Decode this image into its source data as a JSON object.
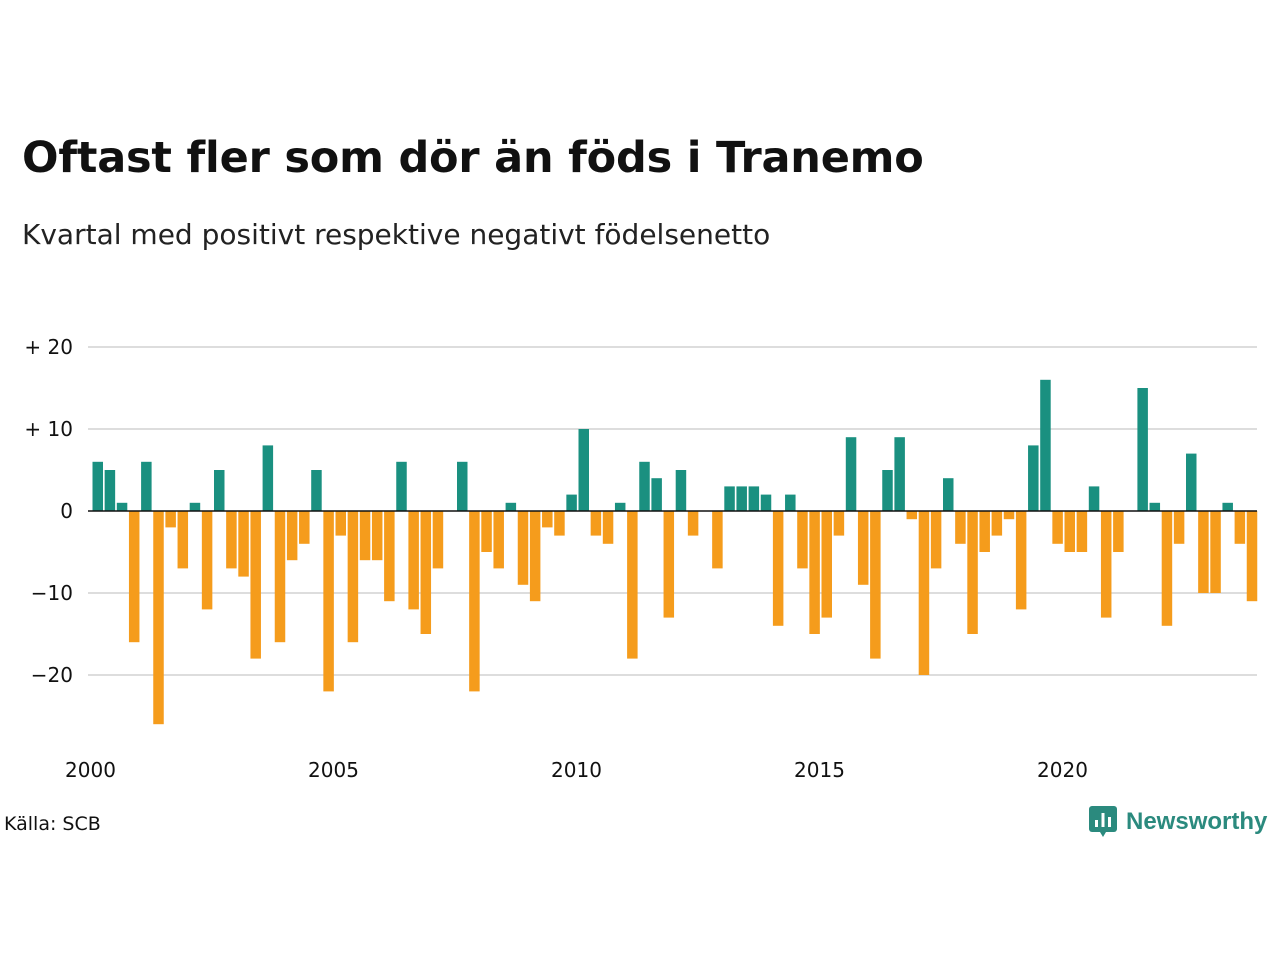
{
  "header": {
    "title": "Oftast fler som dör än föds i Tranemo",
    "subtitle": "Kvartal med positivt respektive negativt födelsenetto"
  },
  "footer": {
    "source": "Källa: SCB",
    "brand": "Newsworthy",
    "brand_icon": "newsworthy-logo-icon"
  },
  "colors": {
    "positive": "#1a9080",
    "negative": "#f59c1c",
    "grid": "#dddddd",
    "zero_line": "#111111",
    "brand": "#2b8a7e"
  },
  "chart_data": {
    "type": "bar",
    "x_start": "2000 Q1",
    "x_tick_labels": [
      "2000",
      "2005",
      "2010",
      "2015",
      "2020"
    ],
    "y_ticks": [
      20,
      10,
      0,
      -10,
      -20
    ],
    "y_tick_labels": [
      "+ 20",
      "+ 10",
      "0",
      "−10",
      "−20"
    ],
    "ylim": [
      -28,
      21
    ],
    "grid": true,
    "values": [
      6,
      5,
      1,
      -16,
      6,
      -26,
      -2,
      -7,
      1,
      -12,
      5,
      -7,
      -8,
      -18,
      8,
      -16,
      -6,
      -4,
      5,
      -22,
      -3,
      -16,
      -6,
      -6,
      -11,
      6,
      -12,
      -15,
      -7,
      0,
      6,
      -22,
      -5,
      -7,
      1,
      -9,
      -11,
      -2,
      -3,
      2,
      10,
      -3,
      -4,
      1,
      -18,
      6,
      4,
      -13,
      5,
      -3,
      0,
      -7,
      3,
      3,
      3,
      2,
      -14,
      2,
      -7,
      -15,
      -13,
      -3,
      9,
      -9,
      -18,
      5,
      9,
      -1,
      -20,
      -7,
      4,
      -4,
      -15,
      -5,
      -3,
      -1,
      -12,
      8,
      16,
      -4,
      -5,
      -5,
      3,
      -13,
      -5,
      0,
      15,
      1,
      -14,
      -4,
      7,
      -10,
      -10,
      1,
      -4,
      -11
    ]
  }
}
